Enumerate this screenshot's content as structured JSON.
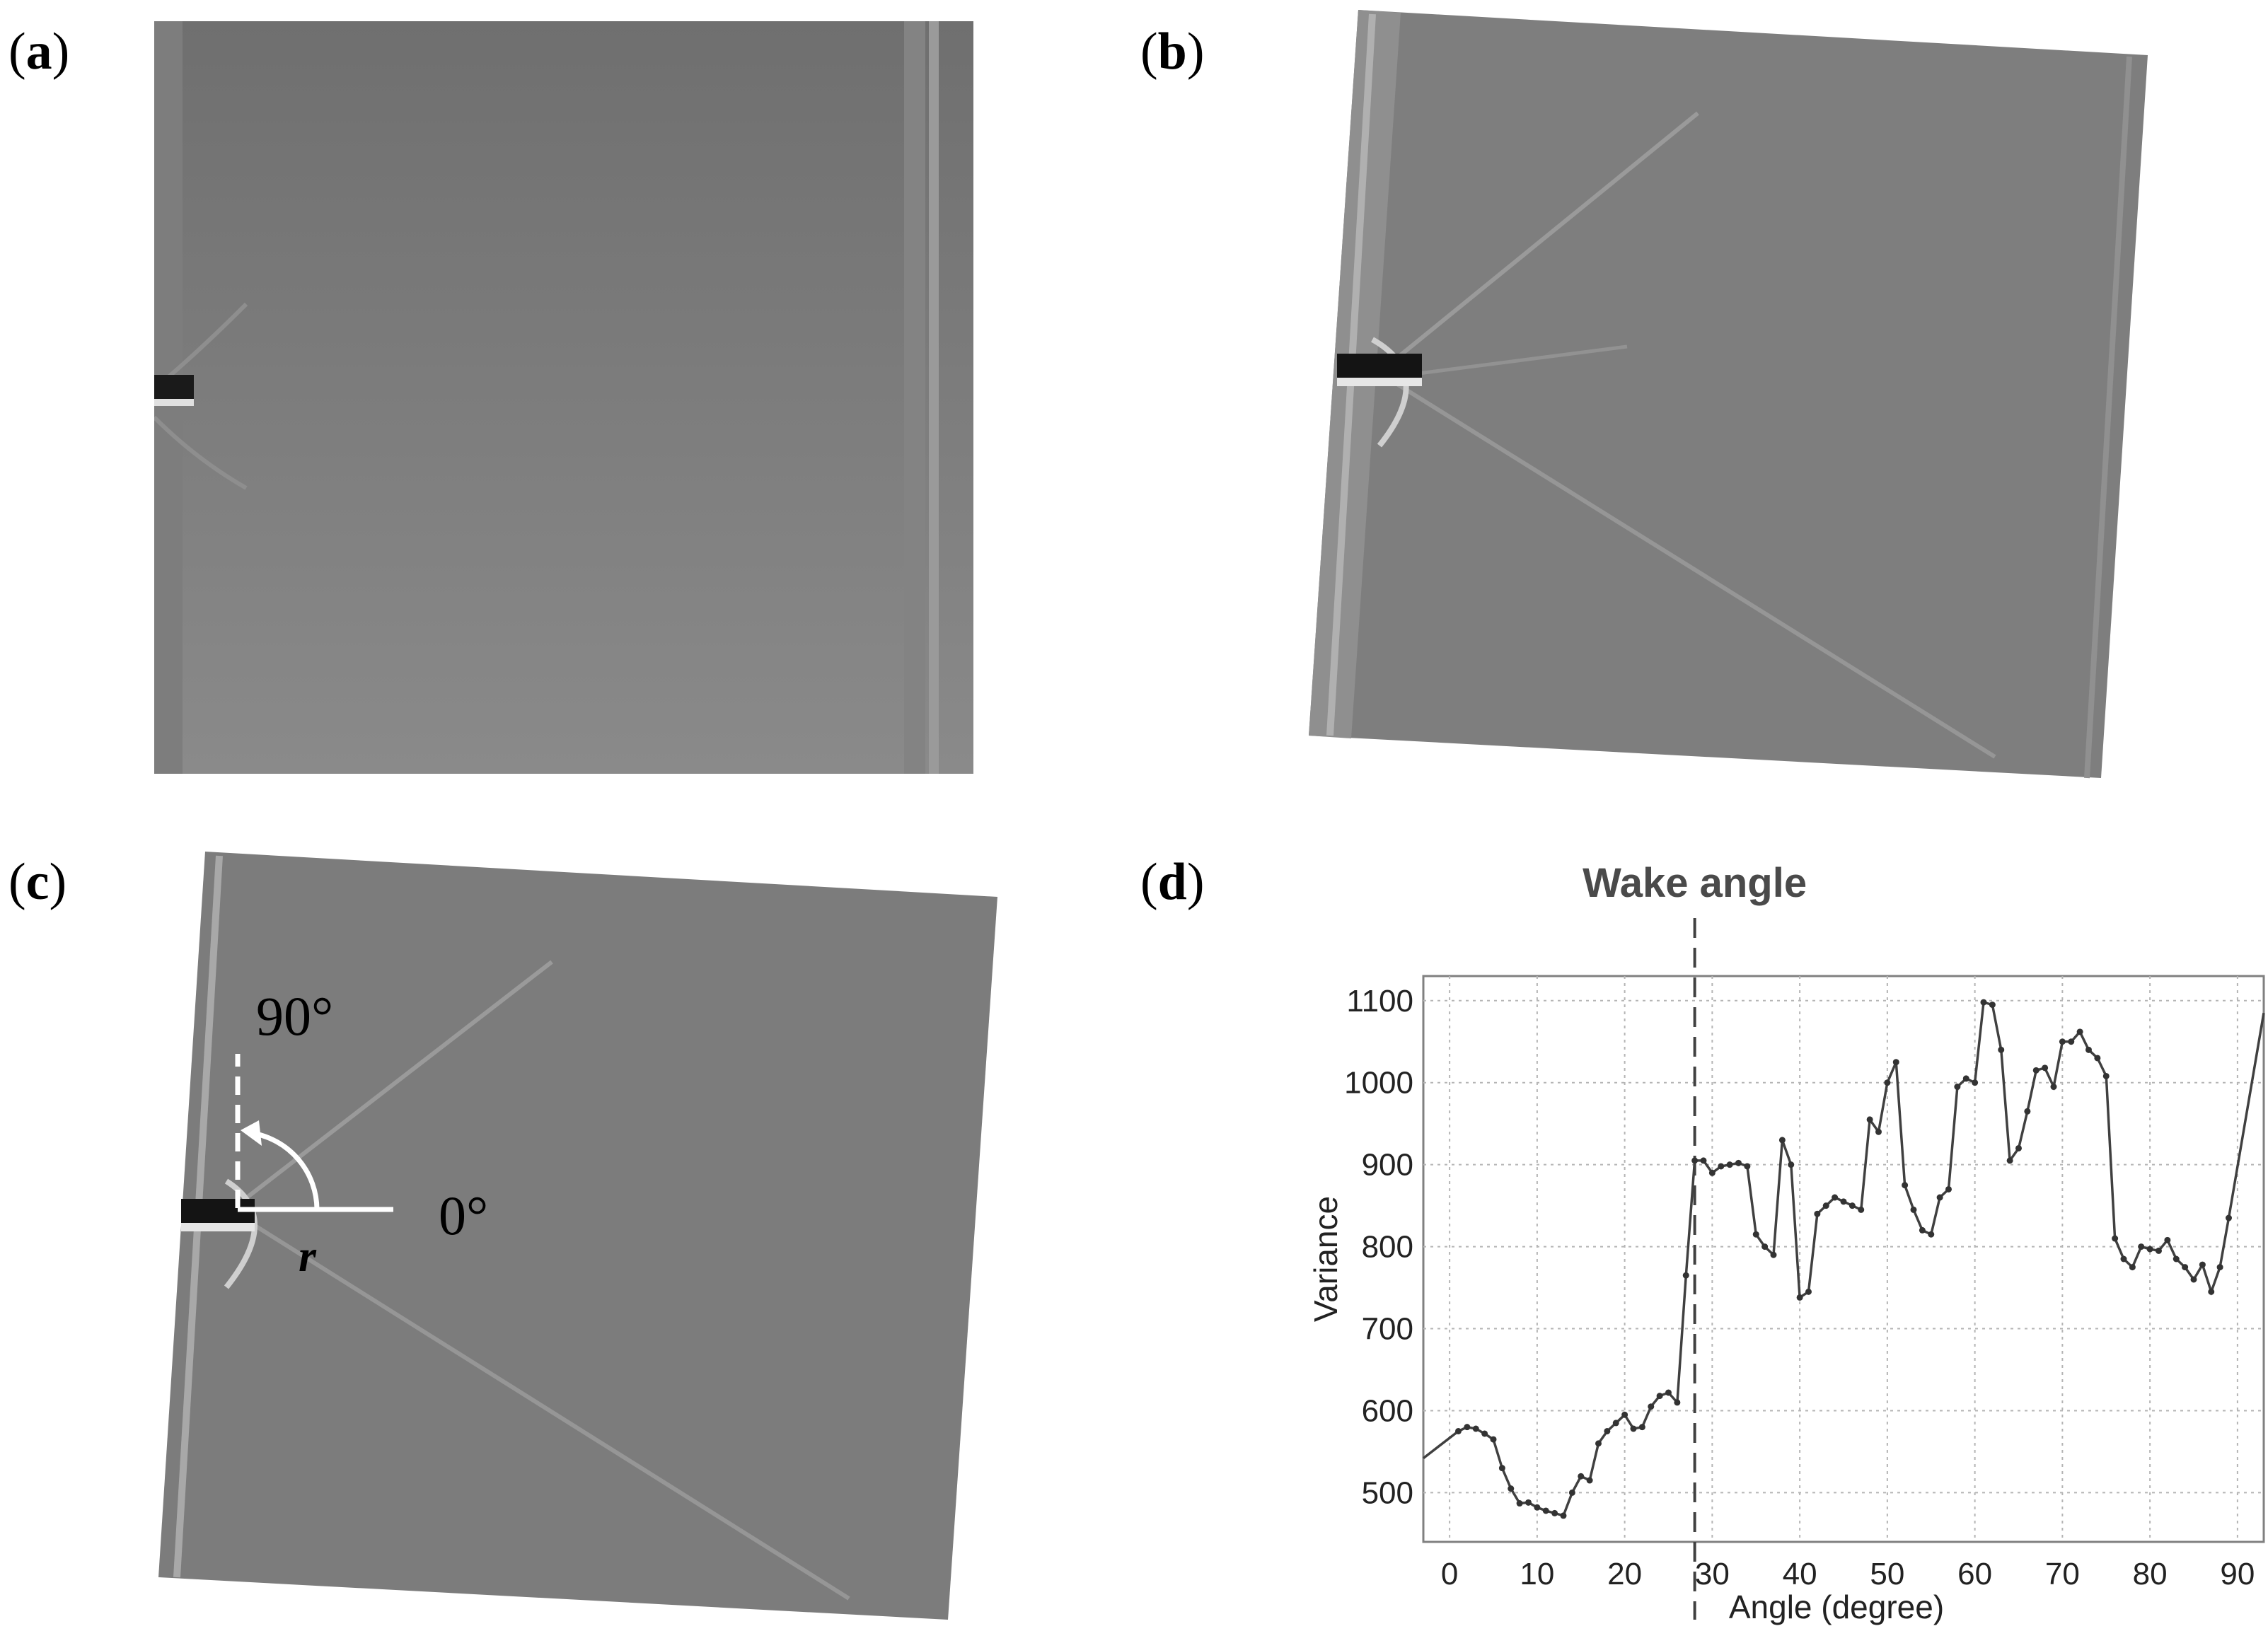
{
  "panels": {
    "a": {
      "label_open": "(",
      "label_letter": "a",
      "label_close": ")"
    },
    "b": {
      "label_open": "(",
      "label_letter": "b",
      "label_close": ")"
    },
    "c": {
      "label_open": "(",
      "label_letter": "c",
      "label_close": ")",
      "angle_90_label": "90°",
      "angle_0_label": "0°",
      "radius_label": "r"
    },
    "d": {
      "label_open": "(",
      "label_letter": "d",
      "label_close": ")"
    }
  },
  "chart_data": {
    "type": "line",
    "annotation": "Wake angle",
    "annotation_x": 28,
    "xlabel": "Angle (degree)",
    "ylabel": "Variance",
    "xlim": [
      -3,
      93
    ],
    "ylim": [
      440,
      1130
    ],
    "xticks": [
      0,
      10,
      20,
      30,
      40,
      50,
      60,
      70,
      80,
      90
    ],
    "yticks": [
      500,
      600,
      700,
      800,
      900,
      1000,
      1100
    ],
    "grid": true,
    "line_color": "#404040",
    "series": [
      {
        "x": [
          -3,
          1,
          2,
          3,
          4,
          5,
          6,
          7,
          8,
          9,
          10,
          11,
          12,
          13,
          14,
          15,
          16,
          17,
          18,
          19,
          20,
          21,
          22,
          23,
          24,
          25,
          26,
          27,
          28,
          29,
          30,
          31,
          32,
          33,
          34,
          35,
          36,
          37,
          38,
          39,
          40,
          41,
          42,
          43,
          44,
          45,
          46,
          47,
          48,
          49,
          50,
          51,
          52,
          53,
          54,
          55,
          56,
          57,
          58,
          59,
          60,
          61,
          62,
          63,
          64,
          65,
          66,
          67,
          68,
          69,
          70,
          71,
          72,
          73,
          74,
          75,
          76,
          77,
          78,
          79,
          80,
          81,
          82,
          83,
          84,
          85,
          86,
          87,
          88,
          89,
          93
        ],
        "y": [
          542,
          575,
          580,
          578,
          572,
          565,
          530,
          505,
          487,
          488,
          482,
          478,
          475,
          472,
          500,
          520,
          515,
          560,
          575,
          585,
          595,
          578,
          580,
          605,
          618,
          622,
          610,
          765,
          905,
          905,
          890,
          898,
          900,
          902,
          898,
          815,
          800,
          790,
          930,
          900,
          738,
          745,
          840,
          850,
          860,
          855,
          850,
          845,
          955,
          940,
          1000,
          1025,
          875,
          845,
          820,
          815,
          860,
          870,
          995,
          1005,
          1000,
          1098,
          1095,
          1040,
          905,
          920,
          965,
          1015,
          1018,
          995,
          1050,
          1050,
          1062,
          1040,
          1030,
          1008,
          810,
          785,
          775,
          800,
          797,
          795,
          808,
          785,
          775,
          760,
          778,
          745,
          775,
          835,
          1085
        ]
      }
    ]
  }
}
